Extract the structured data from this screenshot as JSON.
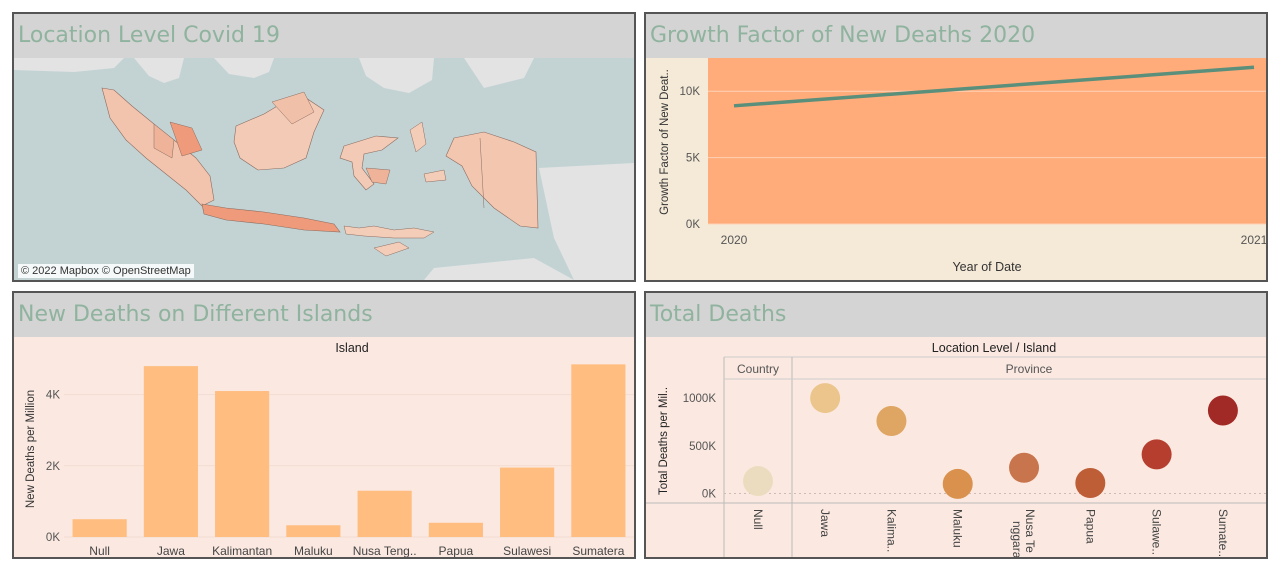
{
  "panels": {
    "map": {
      "title": "Location Level Covid 19",
      "credit": "© 2022 Mapbox © OpenStreetMap"
    },
    "growth": {
      "title": "Growth Factor of New Deaths 2020",
      "ylabel": "Growth Factor of New Deat..",
      "xlabel": "Year of Date"
    },
    "islands": {
      "title": "New Deaths on Different Islands",
      "header": "Island",
      "ylabel": "New Deaths per Million"
    },
    "total": {
      "title": "Total Deaths",
      "header": "Location Level / Island",
      "ylabel": "Total Deaths per Mil..",
      "group_country": "Country",
      "group_province": "Province"
    }
  },
  "colors": {
    "title_bg": "#d4d4d4",
    "title_text": "#8fb39e",
    "growth_bg": "#ffab7a",
    "growth_line": "#5a8f7b",
    "bar_fill": "#ffbd80",
    "chart_bg": "#fbe9e1"
  },
  "chart_data": [
    {
      "type": "line",
      "x": [
        "2020",
        "2021"
      ],
      "series": [
        {
          "values": [
            8900,
            11800
          ]
        }
      ],
      "ylim": [
        0,
        12500
      ],
      "yticks": [
        "0K",
        "5K",
        "10K"
      ],
      "xlabel": "Year of Date",
      "ylabel": "Growth Factor of New Deat.."
    },
    {
      "type": "bar",
      "categories": [
        "Null",
        "Jawa",
        "Kalimantan",
        "Maluku",
        "Nusa Teng..",
        "Papua",
        "Sulawesi",
        "Sumatera"
      ],
      "values": [
        500,
        4800,
        4100,
        330,
        1300,
        400,
        1950,
        4850
      ],
      "ylim": [
        0,
        5000
      ],
      "yticks": [
        "0K",
        "2K",
        "4K"
      ],
      "xlabel": "Island",
      "ylabel": "New Deaths per Million"
    },
    {
      "type": "scatter",
      "categories": [
        "Null",
        "Jawa",
        "Kalima..",
        "Maluku",
        "Nusa Te nggara",
        "Papua",
        "Sulawe..",
        "Sumate.."
      ],
      "values": [
        130000,
        1000000,
        760000,
        100000,
        270000,
        110000,
        410000,
        870000
      ],
      "colors": [
        "#ecdcbf",
        "#ebc58b",
        "#dfa563",
        "#d9914d",
        "#c8754d",
        "#bd5e37",
        "#b53e2e",
        "#a12a26"
      ],
      "ylim": [
        -100000,
        1200000
      ],
      "yticks": [
        "0K",
        "500K",
        "1000K"
      ],
      "xlabel": "Location Level / Island",
      "ylabel": "Total Deaths per Mil.."
    }
  ]
}
